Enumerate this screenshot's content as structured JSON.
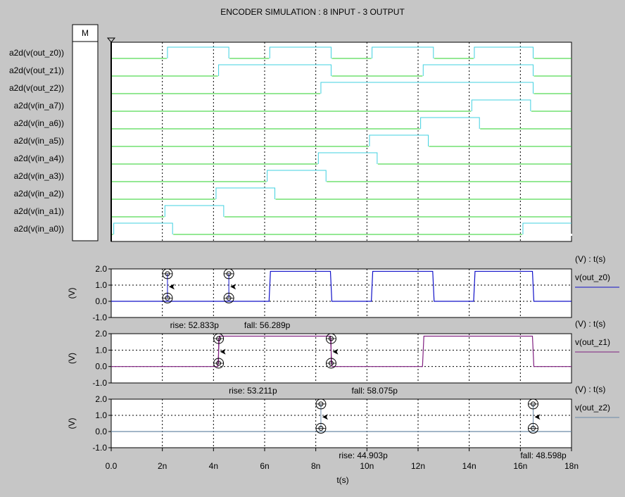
{
  "window": {
    "title": "ENCODER SIMULATION : 8 INPUT - 3 OUTPUT",
    "marker_button_label": "M"
  },
  "colors": {
    "background": "#c6c6c6",
    "plot_bg": "#ffffff",
    "digital_high": "#40d0e0",
    "digital_low": "#2ad02a",
    "out_z0": "#1010c8",
    "out_z1": "#802080",
    "out_z2": "#6a8aa8"
  },
  "chart_data": [
    {
      "type": "line",
      "kind": "digital",
      "xlim": [
        0,
        18
      ],
      "x_unit": "n",
      "signals": [
        {
          "name": "a2d(v(out_z0))",
          "high": [
            [
              2.2,
              4.6
            ],
            [
              6.2,
              8.6
            ],
            [
              10.2,
              12.6
            ],
            [
              14.2,
              16.5
            ]
          ]
        },
        {
          "name": "a2d(v(out_z1))",
          "high": [
            [
              4.2,
              8.6
            ],
            [
              12.2,
              16.5
            ]
          ]
        },
        {
          "name": "a2d(v(out_z2))",
          "high": [
            [
              8.2,
              16.5
            ]
          ]
        },
        {
          "name": "a2d(v(in_a7))",
          "high": [
            [
              14.1,
              16.4
            ]
          ]
        },
        {
          "name": "a2d(v(in_a6))",
          "high": [
            [
              12.1,
              14.4
            ]
          ]
        },
        {
          "name": "a2d(v(in_a5))",
          "high": [
            [
              10.1,
              12.4
            ]
          ]
        },
        {
          "name": "a2d(v(in_a4))",
          "high": [
            [
              8.1,
              10.4
            ]
          ]
        },
        {
          "name": "a2d(v(in_a3))",
          "high": [
            [
              6.1,
              8.4
            ]
          ]
        },
        {
          "name": "a2d(v(in_a2))",
          "high": [
            [
              4.1,
              6.4
            ]
          ]
        },
        {
          "name": "a2d(v(in_a1))",
          "high": [
            [
              2.1,
              4.4
            ]
          ]
        },
        {
          "name": "a2d(v(in_a0))",
          "high": [
            [
              0.1,
              2.4
            ],
            [
              16.1,
              18
            ]
          ]
        }
      ]
    },
    {
      "type": "line",
      "xlim": [
        0,
        18
      ],
      "ylim": [
        -1.0,
        2.0
      ],
      "yticks": [
        "2.0",
        "1.0",
        "0.0",
        "-1.0"
      ],
      "ylabel": "(V)",
      "header": "(V) : t(s)",
      "series_name": "v(out_z0)",
      "high": [
        [
          6.2,
          8.6
        ],
        [
          10.2,
          12.6
        ],
        [
          14.2,
          16.5
        ]
      ],
      "measure_marks": [
        2.2,
        4.6
      ],
      "annotations": [
        {
          "text": "rise: 52.833p",
          "x": 2.3
        },
        {
          "text": "fall: 56.289p",
          "x": 5.2
        }
      ]
    },
    {
      "type": "line",
      "xlim": [
        0,
        18
      ],
      "ylim": [
        -1.0,
        2.0
      ],
      "yticks": [
        "2.0",
        "1.0",
        "0.0",
        "-1.0"
      ],
      "ylabel": "(V)",
      "header": "(V) : t(s)",
      "series_name": "v(out_z1)",
      "high": [
        [
          4.2,
          8.6
        ],
        [
          12.2,
          16.5
        ]
      ],
      "measure_marks": [
        4.2,
        8.6
      ],
      "annotations": [
        {
          "text": "rise: 53.211p",
          "x": 4.6
        },
        {
          "text": "fall: 58.075p",
          "x": 9.4
        }
      ]
    },
    {
      "type": "line",
      "xlim": [
        0,
        18
      ],
      "ylim": [
        -1.0,
        2.0
      ],
      "yticks": [
        "2.0",
        "1.0",
        "0.0",
        "-1.0"
      ],
      "ylabel": "(V)",
      "header": "(V) : t(s)",
      "series_name": "v(out_z2)",
      "high": [],
      "measure_marks": [
        8.2,
        16.5
      ],
      "annotations": [
        {
          "text": "rise: 44.903p",
          "x": 8.9
        },
        {
          "text": "fall: 48.598p",
          "x": 16.0
        }
      ]
    }
  ],
  "x_axis": {
    "ticks": [
      "0.0",
      "2n",
      "4n",
      "6n",
      "8n",
      "10n",
      "12n",
      "14n",
      "16n",
      "18n"
    ],
    "label": "t(s)"
  }
}
